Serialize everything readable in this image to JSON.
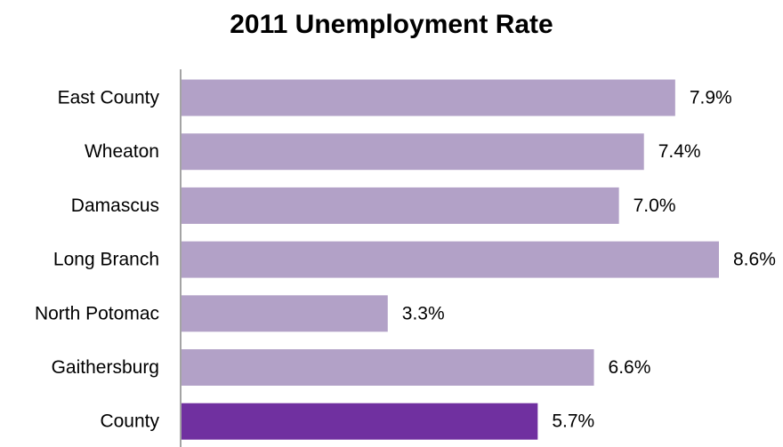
{
  "chart_data": {
    "type": "bar",
    "orientation": "horizontal",
    "title": "2011 Unemployment Rate",
    "xlabel": "",
    "ylabel": "",
    "categories": [
      "East County",
      "Wheaton",
      "Damascus",
      "Long Branch",
      "North Potomac",
      "Gaithersburg",
      "County"
    ],
    "values": [
      7.9,
      7.4,
      7.0,
      8.6,
      3.3,
      6.6,
      5.7
    ],
    "value_labels": [
      "7.9%",
      "7.4%",
      "7.0%",
      "8.6%",
      "3.3%",
      "6.6%",
      "5.7%"
    ],
    "xlim": [
      0,
      8.6
    ],
    "grid": false,
    "legend": "none",
    "colors": {
      "default_bar": "#b2a1c7",
      "highlight_bar": "#7030a0",
      "axis_line": "#868686"
    },
    "highlight_index": 6
  }
}
